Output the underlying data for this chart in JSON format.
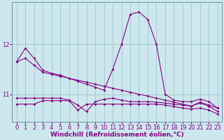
{
  "xlabel": "Windchill (Refroidissement éolien,°C)",
  "background_color": "#cce8ee",
  "line_color": "#880088",
  "x": [
    0,
    1,
    2,
    3,
    4,
    5,
    6,
    7,
    8,
    9,
    10,
    11,
    12,
    13,
    14,
    15,
    16,
    17,
    18,
    19,
    20,
    21,
    22,
    23
  ],
  "line1": [
    11.65,
    11.92,
    11.72,
    11.48,
    11.42,
    11.38,
    11.32,
    11.26,
    11.2,
    11.14,
    11.08,
    11.5,
    12.0,
    12.6,
    12.65,
    12.5,
    12.0,
    11.0,
    10.88,
    10.85,
    10.85,
    10.9,
    10.85,
    10.72
  ],
  "line2": [
    11.65,
    11.72,
    11.58,
    11.44,
    11.4,
    11.36,
    11.32,
    11.28,
    11.24,
    11.2,
    11.16,
    11.12,
    11.08,
    11.04,
    11.0,
    10.96,
    10.92,
    10.88,
    10.84,
    10.8,
    10.76,
    10.84,
    10.78,
    10.72
  ],
  "line3": [
    10.92,
    10.92,
    10.92,
    10.92,
    10.92,
    10.92,
    10.88,
    10.78,
    10.65,
    10.85,
    10.9,
    10.92,
    10.88,
    10.85,
    10.85,
    10.85,
    10.84,
    10.82,
    10.8,
    10.78,
    10.76,
    10.82,
    10.76,
    10.65
  ],
  "line4": [
    10.8,
    10.8,
    10.8,
    10.87,
    10.87,
    10.87,
    10.87,
    10.68,
    10.8,
    10.8,
    10.8,
    10.8,
    10.8,
    10.8,
    10.8,
    10.8,
    10.8,
    10.78,
    10.75,
    10.72,
    10.7,
    10.72,
    10.68,
    10.6
  ],
  "ylim": [
    10.45,
    12.85
  ],
  "yticks": [
    11,
    12
  ],
  "xticks": [
    0,
    1,
    2,
    3,
    4,
    5,
    6,
    7,
    8,
    9,
    10,
    11,
    12,
    13,
    14,
    15,
    16,
    17,
    18,
    19,
    20,
    21,
    22,
    23
  ],
  "grid_color": "#99bbcc",
  "marker": "D",
  "markersize": 2,
  "linewidth": 0.8,
  "xlabel_fontsize": 6.5,
  "tick_fontsize": 6
}
